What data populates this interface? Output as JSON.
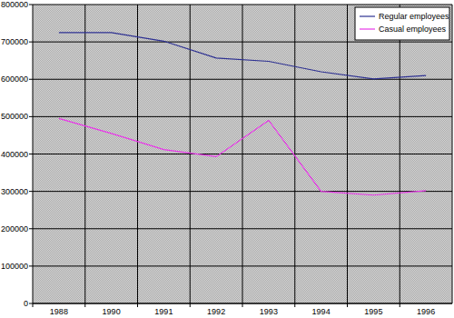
{
  "chart_data": {
    "type": "line",
    "categories": [
      "1988",
      "1990",
      "1991",
      "1992",
      "1993",
      "1994",
      "1995",
      "1996"
    ],
    "series": [
      {
        "name": "Regular employees",
        "color": "#2e3192",
        "values": [
          725000,
          725000,
          702000,
          657000,
          648000,
          620000,
          601000,
          610000
        ]
      },
      {
        "name": "Casual employees",
        "color": "#e838e8",
        "values": [
          495000,
          455000,
          412000,
          393000,
          490000,
          300000,
          290000,
          302000
        ]
      }
    ],
    "ylim": [
      0,
      800000
    ],
    "yticks": [
      0,
      100000,
      200000,
      300000,
      400000,
      500000,
      600000,
      700000,
      800000
    ],
    "grid": true,
    "legend": "top-right"
  }
}
